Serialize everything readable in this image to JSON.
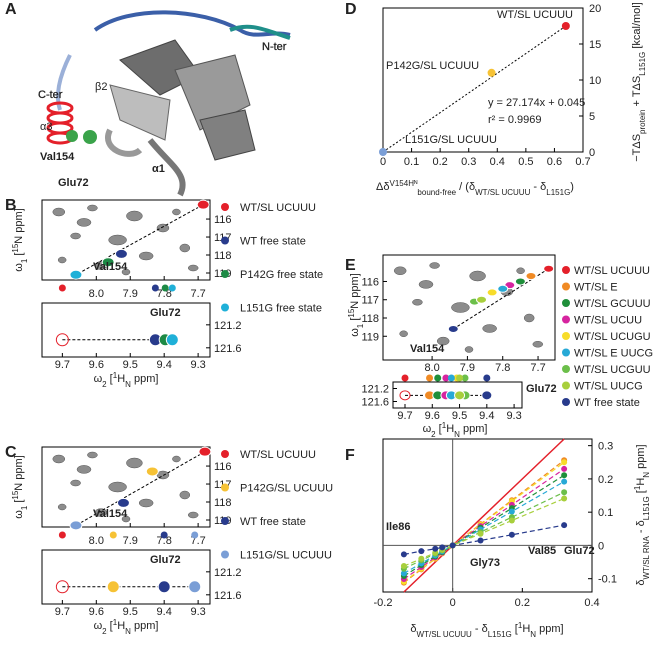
{
  "figure_a": {
    "panel_label": "A",
    "labels": [
      "N-ter",
      "C-ter",
      "β2",
      "α3",
      "Val154",
      "Glu72",
      "α1"
    ]
  },
  "chart_data": [
    {
      "type": "nmr",
      "panel_label": "B",
      "xlabel": [
        "ω",
        "2",
        " [",
        "1",
        "H",
        "N",
        " ppm]"
      ],
      "ylabel": [
        "ω",
        "1",
        " [",
        "15",
        "N ppm]"
      ],
      "xlim": [
        8.16,
        7.665
      ],
      "xticks": [
        {
          "value": 8,
          "label": "8.0"
        },
        7.9,
        7.8,
        7.7
      ],
      "ylim": [
        114.94,
        119.39
      ],
      "yticks": [
        116,
        117,
        118,
        119
      ],
      "strip_xlim": [
        9.76,
        9.265
      ],
      "strip_xticks": [
        9.7,
        9.6,
        9.5,
        9.4,
        9.3
      ],
      "strip_ylim": [
        120.82,
        121.76
      ],
      "strip_yticks": [
        121.2,
        121.6
      ],
      "peak_label": "Val154",
      "strip_label": "Glu72",
      "series": [
        {
          "name": "WT/SL UCUUU",
          "color": "#e4202a",
          "x": 7.685,
          "y": 115.2,
          "strip_x": 9.7,
          "strip_y": 121.46
        },
        {
          "name": "WT free state",
          "color": "#283b8c",
          "x": 7.926,
          "y": 117.94,
          "strip_x": 9.426,
          "strip_y": 121.46
        },
        {
          "name": "P142G free state",
          "color": "#1d8a45",
          "x": 7.965,
          "y": 118.4,
          "strip_x": 9.397,
          "strip_y": 121.46
        },
        {
          "name": "L151G free state",
          "color": "#1fb0d8",
          "x": 8.06,
          "y": 119.1,
          "strip_x": 9.376,
          "strip_y": 121.46
        }
      ]
    },
    {
      "type": "nmr",
      "panel_label": "C",
      "xlabel": [
        "ω",
        "2",
        " [",
        "1",
        "H",
        "N",
        " ppm]"
      ],
      "ylabel": [
        "ω",
        "1",
        " [",
        "15",
        "N ppm]"
      ],
      "xlim": [
        8.16,
        7.665
      ],
      "xticks": [
        {
          "value": 8,
          "label": "8.0"
        },
        7.9,
        7.8,
        7.7
      ],
      "ylim": [
        114.94,
        119.39
      ],
      "yticks": [
        116,
        117,
        118,
        119
      ],
      "strip_xlim": [
        9.76,
        9.265
      ],
      "strip_xticks": [
        9.7,
        9.6,
        9.5,
        9.4,
        9.3
      ],
      "strip_ylim": [
        120.82,
        121.76
      ],
      "strip_yticks": [
        121.2,
        121.6
      ],
      "peak_label": "Val154",
      "strip_label": "Glu72",
      "series": [
        {
          "name": "WT/SL UCUUU",
          "color": "#e4202a",
          "x": 7.68,
          "y": 115.2,
          "strip_x": 9.7,
          "strip_y": 121.46
        },
        {
          "name": "P142G/SL UCUUU",
          "color": "#f6c235",
          "x": 7.835,
          "y": 116.3,
          "strip_x": 9.55,
          "strip_y": 121.46
        },
        {
          "name": "WT free state",
          "color": "#283b8c",
          "x": 7.92,
          "y": 118.05,
          "strip_x": 9.4,
          "strip_y": 121.46
        },
        {
          "name": "L151G/SL UCUUU",
          "color": "#7a9ed6",
          "x": 8.06,
          "y": 119.3,
          "strip_x": 9.31,
          "strip_y": 121.46
        }
      ]
    },
    {
      "type": "scatter",
      "panel_label": "D",
      "x": [
        0,
        0.38,
        0.64
      ],
      "values": [
        0,
        11,
        17.5
      ],
      "colors": [
        "#7a9ed6",
        "#f6c235",
        "#e4202a"
      ],
      "point_labels": [
        "L151G/SL UCUUU",
        "P142G/SL UCUUU",
        "WT/SL UCUUU"
      ],
      "annotations": [
        "y = 27.174x + 0.045",
        "r² = 0.9969"
      ],
      "xlim": [
        0,
        0.7
      ],
      "xticks": [
        0,
        0.1,
        0.2,
        0.3,
        0.4,
        0.5,
        0.6,
        0.7
      ],
      "ylim": [
        0,
        20
      ],
      "yticks": [
        0,
        5,
        10,
        15,
        20
      ],
      "xlabel": [
        "Δδ",
        "V154Hᴺ",
        "bound-free",
        " / (δ",
        "WT/SL UCUUU",
        " - δ",
        "L151G",
        ")"
      ],
      "ylabel": [
        "−TΔS",
        "protein",
        " + TΔS",
        "L151G",
        " [kcal/mol]"
      ]
    },
    {
      "type": "nmr",
      "panel_label": "E",
      "xlabel": [
        "ω",
        "2",
        " [",
        "1",
        "H",
        "N",
        " ppm]"
      ],
      "ylabel": [
        "ω",
        "1",
        " [",
        "15",
        "N ppm]"
      ],
      "xlim": [
        8.139,
        7.652
      ],
      "xticks": [
        {
          "value": 8,
          "label": "8.0"
        },
        7.9,
        7.8,
        7.7
      ],
      "ylim": [
        114.55,
        120.3
      ],
      "yticks": [
        116,
        117,
        118,
        119
      ],
      "strip_xlim": [
        9.744,
        9.271
      ],
      "strip_xticks": [
        9.7,
        9.6,
        9.5,
        9.4,
        9.3
      ],
      "strip_ylim": [
        121.0,
        121.8
      ],
      "strip_yticks": [
        121.2,
        121.6
      ],
      "peak_label": "Val154",
      "strip_label": "Glu72",
      "series": [
        {
          "name": "WT/SL UCUUU",
          "color": "#e4202a",
          "x": 7.67,
          "y": 115.3,
          "strip_x": 9.7,
          "strip_y": 121.41
        },
        {
          "name": "WT/SL E",
          "color": "#f08a24",
          "x": 7.72,
          "y": 115.7,
          "strip_x": 9.61,
          "strip_y": 121.41
        },
        {
          "name": "WT/SL GCUUU",
          "color": "#1f8f3a",
          "x": 7.75,
          "y": 116.0,
          "strip_x": 9.58,
          "strip_y": 121.41
        },
        {
          "name": "WT/SL UCUU",
          "color": "#d6249f",
          "x": 7.78,
          "y": 116.2,
          "strip_x": 9.55,
          "strip_y": 121.41
        },
        {
          "name": "WT/SL UCUGU",
          "color": "#f7dc2a",
          "x": 7.83,
          "y": 116.6,
          "strip_x": 9.51,
          "strip_y": 121.41
        },
        {
          "name": "WT/SL E UUCG",
          "color": "#27a9d6",
          "x": 7.8,
          "y": 116.4,
          "strip_x": 9.53,
          "strip_y": 121.41
        },
        {
          "name": "WT/SL UCGUU",
          "color": "#6cbf4a",
          "x": 7.88,
          "y": 117.1,
          "strip_x": 9.48,
          "strip_y": 121.41
        },
        {
          "name": "WT/SL UUCG",
          "color": "#a8cf3c",
          "x": 7.86,
          "y": 117.0,
          "strip_x": 9.5,
          "strip_y": 121.41
        },
        {
          "name": "WT free state",
          "color": "#283b8c",
          "x": 7.94,
          "y": 118.6,
          "strip_x": 9.4,
          "strip_y": 121.41
        }
      ]
    },
    {
      "type": "line",
      "panel_label": "F",
      "x": [
        -0.14,
        -0.09,
        -0.05,
        -0.03,
        0,
        0.08,
        0.17,
        0.32
      ],
      "series": [
        {
          "color": "#e4202a",
          "line_style": "solid",
          "values": [
            -0.14,
            -0.09,
            -0.05,
            -0.03,
            0,
            0.08,
            0.17,
            0.32
          ]
        },
        {
          "color": "#f08a24",
          "line_style": "dashed",
          "values": [
            -0.112,
            -0.072,
            -0.04,
            -0.024,
            0,
            0.064,
            0.136,
            0.256
          ]
        },
        {
          "color": "#f7dc2a",
          "line_style": "dashed",
          "values": [
            -0.109,
            -0.07,
            -0.039,
            -0.023,
            0,
            0.062,
            0.133,
            0.25
          ]
        },
        {
          "color": "#d6249f",
          "line_style": "dashed",
          "values": [
            -0.101,
            -0.065,
            -0.036,
            -0.022,
            0,
            0.058,
            0.122,
            0.23
          ]
        },
        {
          "color": "#1f8f3a",
          "line_style": "dashed",
          "values": [
            -0.092,
            -0.059,
            -0.033,
            -0.02,
            0,
            0.053,
            0.112,
            0.211
          ]
        },
        {
          "color": "#27a9d6",
          "line_style": "dashed",
          "values": [
            -0.084,
            -0.054,
            -0.03,
            -0.018,
            0,
            0.048,
            0.102,
            0.192
          ]
        },
        {
          "color": "#6cbf4a",
          "line_style": "dashed",
          "values": [
            -0.07,
            -0.045,
            -0.025,
            -0.015,
            0,
            0.04,
            0.085,
            0.16
          ]
        },
        {
          "color": "#a8cf3c",
          "line_style": "dashed",
          "values": [
            -0.062,
            -0.04,
            -0.022,
            -0.013,
            0,
            0.035,
            0.075,
            0.141
          ]
        },
        {
          "color": "#283b8c",
          "line_style": "dashed",
          "values": [
            -0.027,
            -0.017,
            -0.01,
            -0.006,
            0,
            0.015,
            0.032,
            0.061
          ]
        }
      ],
      "annotations": [
        "Ile86",
        "Gly73",
        "Val85",
        "Glu72"
      ],
      "xlim": [
        -0.2,
        0.4
      ],
      "xticks": [
        -0.2,
        0,
        0.2,
        0.4
      ],
      "ylim": [
        -0.14,
        0.32
      ],
      "yticks": [
        -0.1,
        0,
        0.1,
        0.2,
        0.3
      ],
      "xlabel": [
        "δ",
        "WT/SL UCUUU",
        " - δ",
        "L151G",
        " [",
        "1",
        "H",
        "N",
        " ppm]"
      ],
      "ylabel": [
        "δ",
        "WT/SL RNA",
        " - δ",
        "L151G",
        " [",
        "1",
        "H",
        "N",
        " ppm]"
      ]
    }
  ]
}
